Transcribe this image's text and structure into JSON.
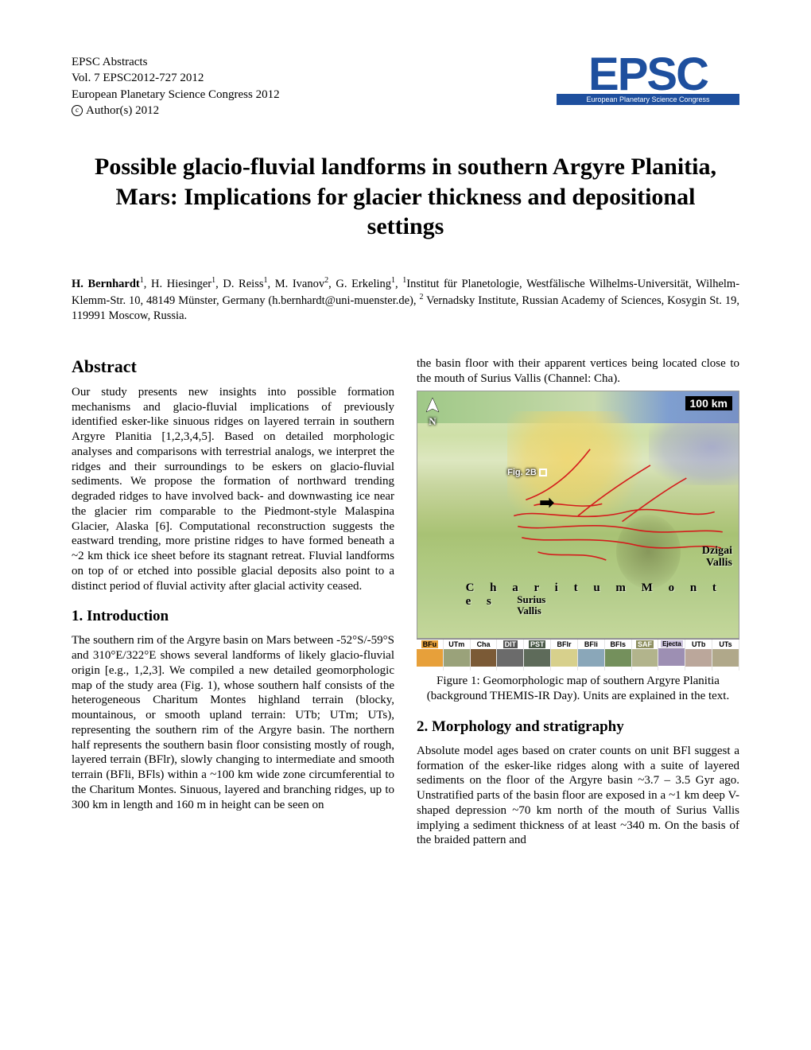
{
  "header": {
    "line1": "EPSC Abstracts",
    "line2": "Vol. 7 EPSC2012-727 2012",
    "line3": "European Planetary Science Congress 2012",
    "copyright_symbol": "c",
    "copyright_text": "Author(s) 2012",
    "logo_big": "EPSC",
    "logo_sub": "European Planetary Science Congress",
    "logo_color": "#1e4f9e"
  },
  "title": "Possible glacio-fluvial landforms in southern Argyre Planitia, Mars: Implications for glacier thickness and depositional settings",
  "authors_html": "H. Bernhardt",
  "authors_rest": ", H. Hiesinger",
  "affil_text_1": ", D. Reiss",
  "affil_text_2": ", M. Ivanov",
  "affil_text_3": ", G. Erkeling",
  "affil_tail": "Institut für Planetologie, Westfälische Wilhelms-Universität, Wilhelm-Klemm-Str. 10, 48149 Münster, Germany (h.bernhardt@uni-muenster.de), ",
  "affil_tail2": " Vernadsky Institute, Russian Academy of Sciences, Kosygin St. 19, 119991 Moscow, Russia.",
  "sections": {
    "abstract_h": "Abstract",
    "abstract_p": "Our study presents new insights into possible formation mechanisms and glacio-fluvial implications of previously identified esker-like sinuous ridges on layered terrain in southern Argyre Planitia [1,2,3,4,5]. Based on detailed morphologic analyses and comparisons with terrestrial analogs, we interpret the ridges and their surroundings to be eskers on glacio-fluvial sediments. We propose the formation of northward trending degraded ridges to have involved back- and downwasting ice near the glacier rim comparable to the Piedmont-style Malaspina Glacier, Alaska [6]. Computational reconstruction suggests the eastward trending, more pristine ridges to have formed beneath a ~2 km thick ice sheet before its stagnant retreat. Fluvial landforms on top of or etched into possible glacial deposits also point to a distinct period of fluvial activity after glacial activity ceased.",
    "intro_h": "1. Introduction",
    "intro_p": "The southern rim of the Argyre basin on Mars between -52°S/-59°S and 310°E/322°E shows several landforms of likely glacio-fluvial origin [e.g., 1,2,3]. We compiled a new detailed geomorphologic map of the study area (Fig. 1), whose southern half consists of the heterogeneous Charitum Montes highland terrain (blocky, mountainous, or smooth upland terrain: UTb; UTm; UTs), representing the southern rim of the Argyre basin. The northern half represents the southern basin floor consisting mostly of rough, layered terrain (BFlr), slowly changing to intermediate and smooth terrain (BFli, BFls) within a ~100 km wide zone circumferential to the Charitum Montes. Sinuous, layered and branching ridges, up to 300 km in length and 160 m in height can be seen on",
    "col2_lead": "the basin floor with their apparent vertices being located close to the mouth of Surius Vallis (Channel: Cha).",
    "morph_h": "2. Morphology and stratigraphy",
    "morph_p": "Absolute model ages based on crater counts on unit BFl suggest a formation of the esker-like ridges along with a suite of layered sediments on the floor of the Argyre basin ~3.7 – 3.5 Gyr ago. Unstratified parts of the basin floor are exposed in a ~1 km deep V-shaped depression ~70 km north of the mouth of Surius Vallis implying a sediment thickness of at least ~340 m. On the basis of the braided pattern and"
  },
  "figure": {
    "scale_label": "100 km",
    "n_label": "N",
    "fig2b_label": "Fig. 2B",
    "arrow": "➡",
    "dzigai": "Dzigai\nVallis",
    "charitum": "C h a r i t u m    M o n t e s",
    "surius": "Surius\nVallis",
    "caption": "Figure 1: Geomorphologic map of southern Argyre Planitia (background THEMIS-IR Day). Units are explained in the text.",
    "legend": [
      {
        "label": "BFu",
        "color": "#e7a03a",
        "label_bg": "#e7a03a",
        "label_fg": "#000"
      },
      {
        "label": "UTm",
        "color": "#9aa27a",
        "label_bg": "transparent",
        "label_fg": "#000"
      },
      {
        "label": "Cha",
        "color": "#7b5a36",
        "label_bg": "transparent",
        "label_fg": "#000"
      },
      {
        "label": "DIT",
        "color": "#6b6b6b",
        "label_bg": "#555",
        "label_fg": "#fff"
      },
      {
        "label": "PST",
        "color": "#5e6b5a",
        "label_bg": "#4a5a48",
        "label_fg": "#fff"
      },
      {
        "label": "BFlr",
        "color": "#d7d08c",
        "label_bg": "transparent",
        "label_fg": "#000"
      },
      {
        "label": "BFli",
        "color": "#8aa7b9",
        "label_bg": "transparent",
        "label_fg": "#000"
      },
      {
        "label": "BFls",
        "color": "#74905c",
        "label_bg": "transparent",
        "label_fg": "#000"
      },
      {
        "label": "SAF",
        "color": "#b2b48c",
        "label_bg": "#8e9060",
        "label_fg": "#fff"
      },
      {
        "label": "Ejecta",
        "color": "#9d8fb3",
        "label_bg": "#c9c0db",
        "label_fg": "#000"
      },
      {
        "label": "UTb",
        "color": "#bba79b",
        "label_bg": "transparent",
        "label_fg": "#000"
      },
      {
        "label": "UTs",
        "color": "#b0a88a",
        "label_bg": "transparent",
        "label_fg": "#000"
      }
    ],
    "ridge_color": "#d41c1c",
    "n_triangle_stroke": "#ffffff"
  }
}
